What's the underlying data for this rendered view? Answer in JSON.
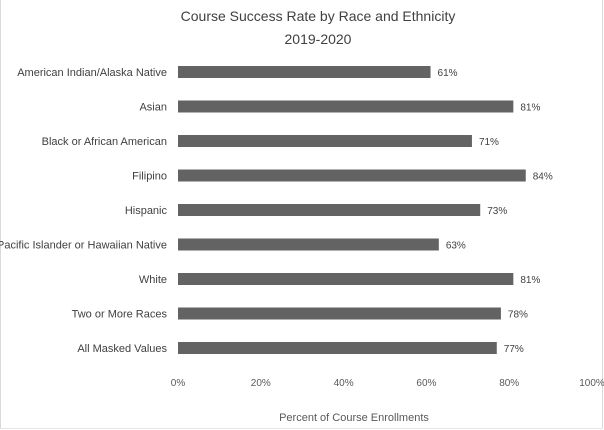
{
  "chart_data": {
    "type": "bar",
    "orientation": "horizontal",
    "title": "Course Success Rate by Race and Ethnicity",
    "subtitle": "2019-2020",
    "xlabel": "Percent of Course Enrollments",
    "ylabel": "",
    "xlim": [
      0,
      100
    ],
    "x_ticks": [
      "0%",
      "20%",
      "40%",
      "60%",
      "80%",
      "100%"
    ],
    "categories": [
      "American Indian/Alaska Native",
      "Asian",
      "Black or African American",
      "Filipino",
      "Hispanic",
      "Pacific Islander or Hawaiian Native",
      "White",
      "Two or More Races",
      "All Masked Values"
    ],
    "values": [
      61,
      81,
      71,
      84,
      73,
      63,
      81,
      78,
      77
    ],
    "value_labels": [
      "61%",
      "81%",
      "71%",
      "84%",
      "73%",
      "63%",
      "81%",
      "78%",
      "77%"
    ],
    "bar_color": "#636363",
    "grid": false,
    "legend": "none"
  }
}
